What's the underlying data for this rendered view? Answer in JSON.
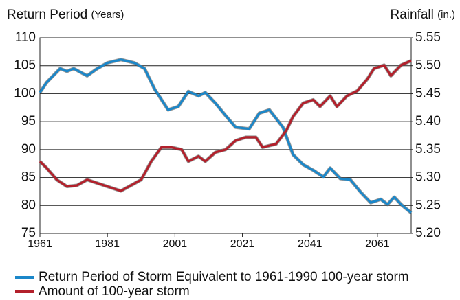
{
  "chart_data": {
    "type": "line",
    "ylabel": "Return Period",
    "ylabel_unit": "(Years)",
    "y2label": "Rainfall",
    "y2label_unit": "(in.)",
    "xlim": [
      1961,
      2071
    ],
    "xticks": [
      1961,
      1981,
      2001,
      2021,
      2041,
      2061
    ],
    "ylim": [
      75,
      110
    ],
    "yticks": [
      75,
      80,
      85,
      90,
      95,
      100,
      105,
      110
    ],
    "y2lim": [
      5.2,
      5.55
    ],
    "y2ticks": [
      {
        "value": 5.2,
        "label": "5.20"
      },
      5.25,
      {
        "value": 5.3,
        "label": "5.30"
      },
      5.35,
      {
        "value": 5.4,
        "label": "5.40"
      },
      5.45,
      {
        "value": 5.5,
        "label": "5.50"
      },
      5.55
    ],
    "grid": true,
    "series": [
      {
        "name": "Return Period of Storm Equivalent to 1961-1990 100-year storm",
        "color": "#1b87c9",
        "x": [
          1961,
          1963,
          1967,
          1969,
          1971,
          1975,
          1978,
          1981,
          1985,
          1989,
          1992,
          1995,
          1999,
          2002,
          2005,
          2008,
          2010,
          2013,
          2016,
          2019,
          2023,
          2026,
          2029,
          2033,
          2036,
          2039,
          2042,
          2045,
          2047,
          2050,
          2053,
          2056,
          2059,
          2062,
          2064,
          2066,
          2068,
          2071
        ],
        "values": [
          100.2,
          102.0,
          104.5,
          104.0,
          104.5,
          103.2,
          104.5,
          105.5,
          106.1,
          105.5,
          104.5,
          100.8,
          97.1,
          97.7,
          100.4,
          99.6,
          100.2,
          98.3,
          96.1,
          94.0,
          93.7,
          96.5,
          97.1,
          94.0,
          89.1,
          87.3,
          86.3,
          85.1,
          86.7,
          84.8,
          84.6,
          82.4,
          80.5,
          81.1,
          80.2,
          81.5,
          80.2,
          78.7
        ]
      },
      {
        "name": "Amount of 100-year storm",
        "color": "#b3202b",
        "axis": "y2",
        "x": [
          1961,
          1963,
          1966,
          1969,
          1972,
          1975,
          1977,
          1981,
          1985,
          1988,
          1991,
          1994,
          1997,
          2000,
          2003,
          2005,
          2008,
          2010,
          2013,
          2016,
          2019,
          2022,
          2025,
          2027,
          2031,
          2034,
          2036,
          2039,
          2042,
          2044,
          2047,
          2049,
          2052,
          2055,
          2058,
          2060,
          2063,
          2065,
          2068,
          2071
        ],
        "values": [
          5.329,
          5.317,
          5.296,
          5.284,
          5.286,
          5.296,
          5.292,
          5.284,
          5.276,
          5.286,
          5.296,
          5.329,
          5.354,
          5.354,
          5.35,
          5.329,
          5.338,
          5.329,
          5.345,
          5.35,
          5.366,
          5.372,
          5.372,
          5.354,
          5.36,
          5.384,
          5.409,
          5.433,
          5.439,
          5.427,
          5.446,
          5.427,
          5.446,
          5.455,
          5.476,
          5.495,
          5.501,
          5.482,
          5.501,
          5.509
        ]
      }
    ]
  }
}
